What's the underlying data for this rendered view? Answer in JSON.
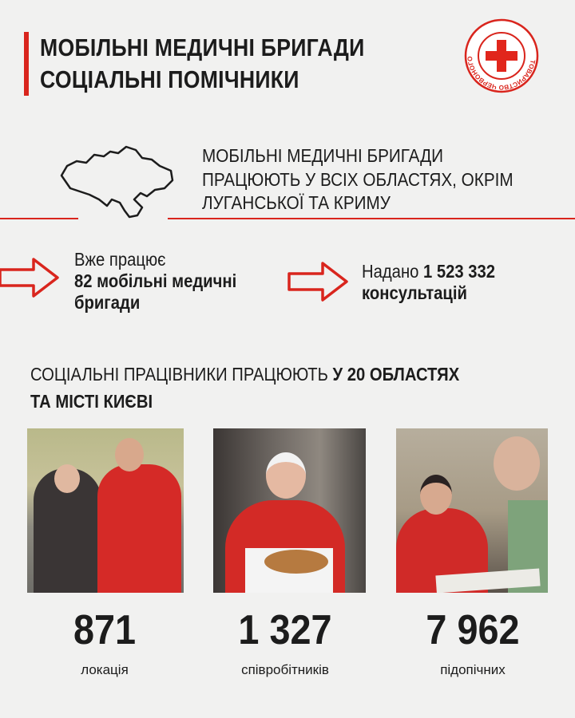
{
  "header": {
    "title_line1": "МОБІЛЬНІ МЕДИЧНІ БРИГАДИ",
    "title_line2": "СОЦІАЛЬНІ ПОМІЧНИКИ",
    "logo_text": "ТОВАРИСТВО ЧЕРВОНОГО ХРЕСТА УКРАЇНИ",
    "accent_color": "#d9251d"
  },
  "coverage": {
    "line1": "МОБІЛЬНІ МЕДИЧНІ БРИГАДИ",
    "line2": "ПРАЦЮЮТЬ У ВСІХ ОБЛАСТЯХ, ОКРІМ",
    "line3": "ЛУГАНСЬКОЇ ТА КРИМУ",
    "map_icon": "ukraine-map-outline"
  },
  "stats": {
    "brigades": {
      "prefix": "Вже працює",
      "bold1": "82 мобільні медичні",
      "bold2": "бригади"
    },
    "consultations": {
      "prefix": "Надано ",
      "bold_number": "1 523 332",
      "bold2": "консультацій"
    }
  },
  "social": {
    "line1_regular": "СОЦІАЛЬНІ ПРАЦІВНИКИ ПРАЦЮЮТЬ ",
    "line1_bold": "У 20 ОБЛАСТЯХ",
    "line2_bold": "ТА МІСТІ КИЄВІ"
  },
  "figures": [
    {
      "number": "871",
      "label": "локація"
    },
    {
      "number": "1 327",
      "label": "співробітників"
    },
    {
      "number": "7 962",
      "label": "підопічних"
    }
  ]
}
